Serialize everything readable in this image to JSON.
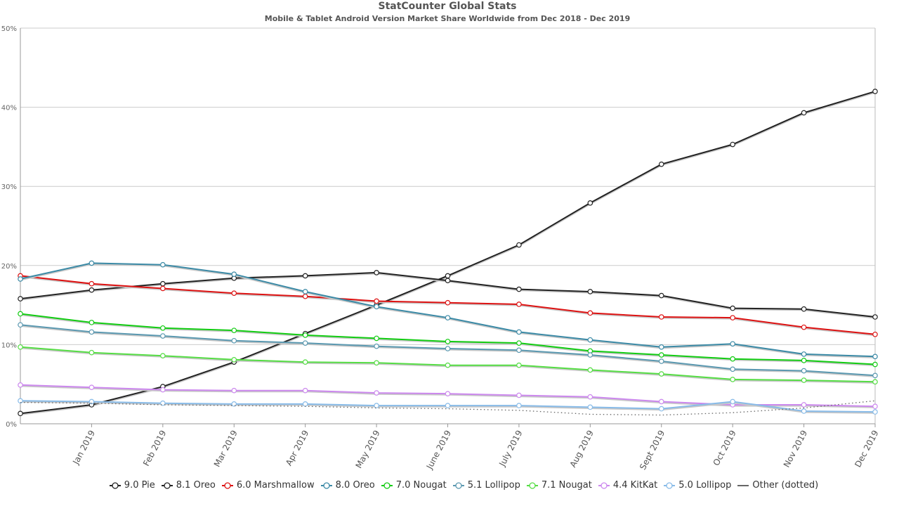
{
  "chart_data": {
    "type": "line",
    "title": "StatCounter Global Stats",
    "subtitle": "Mobile & Tablet Android Version Market Share Worldwide from Dec 2018 - Dec 2019",
    "xlabel": "",
    "ylabel": "",
    "ylim": [
      0,
      50
    ],
    "yticks": [
      "0%",
      "10%",
      "20%",
      "30%",
      "40%",
      "50%"
    ],
    "ytick_values": [
      0,
      10,
      20,
      30,
      40,
      50
    ],
    "grid": true,
    "legend_position": "bottom",
    "x": [
      "Dec 2018",
      "Jan 2019",
      "Feb 2019",
      "Mar 2019",
      "Apr 2019",
      "May 2019",
      "June 2019",
      "July 2019",
      "Aug 2019",
      "Sept 2019",
      "Oct 2019",
      "Nov 2019",
      "Dec 2019"
    ],
    "xtick_labels": [
      "Jan 2019",
      "Feb 2019",
      "Mar 2019",
      "Apr 2019",
      "May 2019",
      "June 2019",
      "July 2019",
      "Aug 2019",
      "Sept 2019",
      "Oct 2019",
      "Nov 2019",
      "Dec 2019"
    ],
    "series": [
      {
        "name": "9.0 Pie",
        "color": "#222222",
        "dotted": false,
        "values": [
          1.3,
          2.4,
          4.7,
          7.8,
          11.4,
          15.0,
          18.7,
          22.6,
          27.9,
          32.8,
          35.3,
          39.3,
          42.0
        ]
      },
      {
        "name": "8.1 Oreo",
        "color": "#222222",
        "dotted": false,
        "values": [
          15.8,
          16.9,
          17.7,
          18.4,
          18.7,
          19.1,
          18.1,
          17.0,
          16.7,
          16.2,
          14.6,
          14.5,
          13.5
        ]
      },
      {
        "name": "6.0 Marshmallow",
        "color": "#dd1111",
        "dotted": false,
        "values": [
          18.7,
          17.7,
          17.1,
          16.5,
          16.1,
          15.5,
          15.3,
          15.1,
          14.0,
          13.5,
          13.4,
          12.2,
          11.3
        ]
      },
      {
        "name": "8.0 Oreo",
        "color": "#3b8aa6",
        "dotted": false,
        "values": [
          18.3,
          20.3,
          20.1,
          18.9,
          16.7,
          14.8,
          13.4,
          11.6,
          10.6,
          9.7,
          10.1,
          8.8,
          8.5
        ]
      },
      {
        "name": "7.0 Nougat",
        "color": "#11cc11",
        "dotted": false,
        "values": [
          13.9,
          12.8,
          12.1,
          11.8,
          11.2,
          10.8,
          10.4,
          10.2,
          9.2,
          8.7,
          8.2,
          8.0,
          7.5
        ]
      },
      {
        "name": "5.1 Lollipop",
        "color": "#5a98b0",
        "dotted": false,
        "values": [
          12.5,
          11.6,
          11.1,
          10.5,
          10.2,
          9.8,
          9.5,
          9.3,
          8.7,
          7.9,
          6.9,
          6.7,
          6.1
        ]
      },
      {
        "name": "7.1 Nougat",
        "color": "#55dd44",
        "dotted": false,
        "values": [
          9.7,
          9.0,
          8.6,
          8.1,
          7.8,
          7.7,
          7.4,
          7.4,
          6.8,
          6.3,
          5.6,
          5.5,
          5.3
        ]
      },
      {
        "name": "4.4 KitKat",
        "color": "#cc88ee",
        "dotted": false,
        "values": [
          4.9,
          4.6,
          4.3,
          4.2,
          4.2,
          3.9,
          3.8,
          3.6,
          3.4,
          2.8,
          2.4,
          2.4,
          2.2
        ]
      },
      {
        "name": "5.0 Lollipop",
        "color": "#88bbe8",
        "dotted": false,
        "values": [
          2.9,
          2.8,
          2.6,
          2.5,
          2.5,
          2.3,
          2.3,
          2.3,
          2.1,
          1.9,
          2.8,
          1.6,
          1.5
        ]
      },
      {
        "name": "Other (dotted)",
        "color": "#666666",
        "dotted": true,
        "values": [
          2.7,
          2.6,
          2.4,
          2.3,
          2.2,
          2.0,
          1.9,
          1.7,
          1.2,
          1.1,
          1.4,
          2.0,
          2.9
        ]
      }
    ]
  }
}
